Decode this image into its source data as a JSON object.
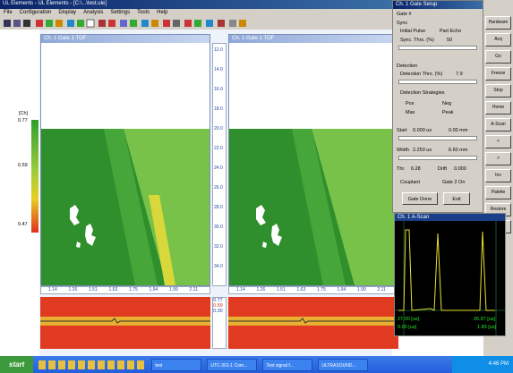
{
  "window": {
    "title": "UL Elements - UL Elements - [C:\\...\\test.ule]",
    "menu": [
      "File",
      "Configuration",
      "Display",
      "Analysis",
      "Settings",
      "Tools",
      "Help"
    ]
  },
  "color_scale": {
    "unit": "[Ch]",
    "labels": [
      "0.77",
      "0.59",
      "0.47"
    ]
  },
  "panels": [
    {
      "title": "Ch. 1 Gate 1 TOF"
    },
    {
      "title": "Ch. 1 Gate 1 TOF"
    }
  ],
  "x_ticks": [
    "1.14",
    "1.26",
    "1.51",
    "1.63",
    "1.75",
    "1.94",
    "1.99",
    "2.11"
  ],
  "mid_scale": [
    "12.0",
    "14.0",
    "16.0",
    "18.0",
    "20.0",
    "22.0",
    "24.0",
    "26.0",
    "28.0",
    "30.0",
    "32.0",
    "34.0"
  ],
  "strip_labels": [
    "0.77",
    "0.59",
    "0.30"
  ],
  "dialog": {
    "title": "Ch. 1 Gate Setup",
    "gate": "Gate #",
    "sync": "Sync",
    "initial_pulse": "Initial Pulse",
    "part_echo": "Part Echo",
    "sync_thrs": "Sync. Thrs. (%)",
    "sync_val": "50",
    "detection": "Detection",
    "detection_thrs": "Detection Thrs. (%)",
    "detection_val": "7.9",
    "strategies": "Detection Strategies",
    "pos": "Pos",
    "neg": "Neg",
    "max": "Max",
    "peak": "Peak",
    "start": "Start",
    "start_val": "0.000 us",
    "start_val2": "0.00 mm",
    "width": "Width",
    "width_val": "2.250 us",
    "width_val2": "6.60 mm",
    "thr": "Thr.",
    "thr_val": "6.28",
    "level": "Drift",
    "level_val": "0.000",
    "couplant": "Couplant",
    "gate2on": "Gate 2 On",
    "gate_done": "Gate Done",
    "exit": "Exit"
  },
  "buttons": [
    "Hardware",
    "Acq",
    "Go",
    "Freeze",
    "Stop",
    "Home",
    "A-Scan",
    "<",
    ">",
    "Inv",
    "Palette",
    "Restore",
    "Exit"
  ],
  "scope": {
    "title": "Ch. 1 A-Scan",
    "readout_left": "27.00 [us]",
    "readout_right": "26.97 [us]",
    "foot_left": "0.00 [us]",
    "foot_right": "1.83 [us]"
  },
  "taskbar": {
    "start": "start",
    "tasks": [
      "test",
      "UTC-301-1 Com...",
      "Test signal f...",
      "ULTRASOUND..."
    ],
    "clock": "4:46 PM"
  }
}
